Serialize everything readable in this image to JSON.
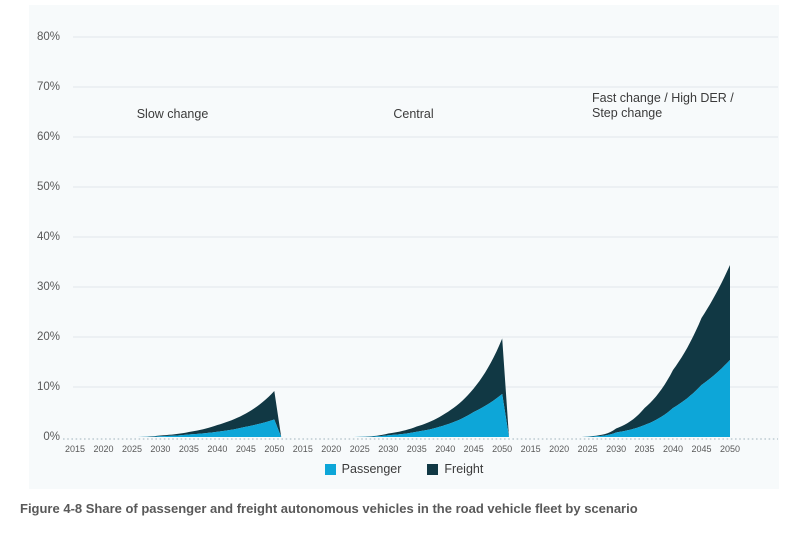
{
  "figure": {
    "caption": "Figure 4-8 Share of passenger and freight autonomous vehicles in the road vehicle fleet by scenario"
  },
  "chart_data": {
    "type": "area",
    "stacked": true,
    "title": "",
    "xlabel": "",
    "ylabel": "",
    "unit": "% of road vehicle fleet",
    "ylim": [
      0,
      80
    ],
    "grid": true,
    "legend_position": "bottom",
    "ytick_labels": [
      "0%",
      "10%",
      "20%",
      "30%",
      "40%",
      "50%",
      "60%",
      "70%",
      "80%"
    ],
    "xtick_labels": [
      "2015",
      "2020",
      "2025",
      "2030",
      "2035",
      "2040",
      "2045",
      "2050"
    ],
    "legend": [
      {
        "name": "Passenger",
        "color": "#0da6d8"
      },
      {
        "name": "Freight",
        "color": "#113844"
      }
    ],
    "colors": {
      "passenger": "#0da6d8",
      "freight": "#113844",
      "gridline": "#e0e6eb",
      "baseline_dotted": "#b3c2ca",
      "plot_background": "#f7fafb",
      "tick_text": "#595959"
    },
    "panels": [
      {
        "label": "Slow change",
        "anchor_years": [
          2015,
          2026,
          2028,
          2030,
          2035,
          2040,
          2045,
          2050
        ],
        "passenger": [
          0,
          0,
          0.05,
          0.15,
          0.5,
          1.05,
          2.05,
          3.5
        ],
        "freight": [
          0,
          0,
          0.07,
          0.15,
          0.5,
          1.35,
          2.65,
          5.7
        ],
        "total": [
          0,
          0,
          0.12,
          0.3,
          1.0,
          2.4,
          4.7,
          9.2
        ]
      },
      {
        "label": "Central",
        "anchor_years": [
          2015,
          2024,
          2026,
          2030,
          2035,
          2040,
          2045,
          2050
        ],
        "passenger": [
          0,
          0,
          0.05,
          0.35,
          1.05,
          2.4,
          5.0,
          8.6
        ],
        "freight": [
          0,
          0,
          0.05,
          0.35,
          1.05,
          2.3,
          4.7,
          11.1
        ],
        "total": [
          0,
          0,
          0.1,
          0.7,
          2.1,
          4.7,
          9.7,
          19.7
        ]
      },
      {
        "label": "Fast change / High DER / Step change",
        "anchor_years": [
          2015,
          2024,
          2026,
          2030,
          2035,
          2040,
          2045,
          2050
        ],
        "passenger": [
          0,
          0,
          0.1,
          0.9,
          2.4,
          5.8,
          10.4,
          15.4
        ],
        "freight": [
          0,
          0,
          0.1,
          0.8,
          3.4,
          7.6,
          13.4,
          19.0
        ],
        "total": [
          0,
          0,
          0.2,
          1.7,
          5.8,
          13.4,
          23.8,
          34.4
        ]
      }
    ]
  }
}
